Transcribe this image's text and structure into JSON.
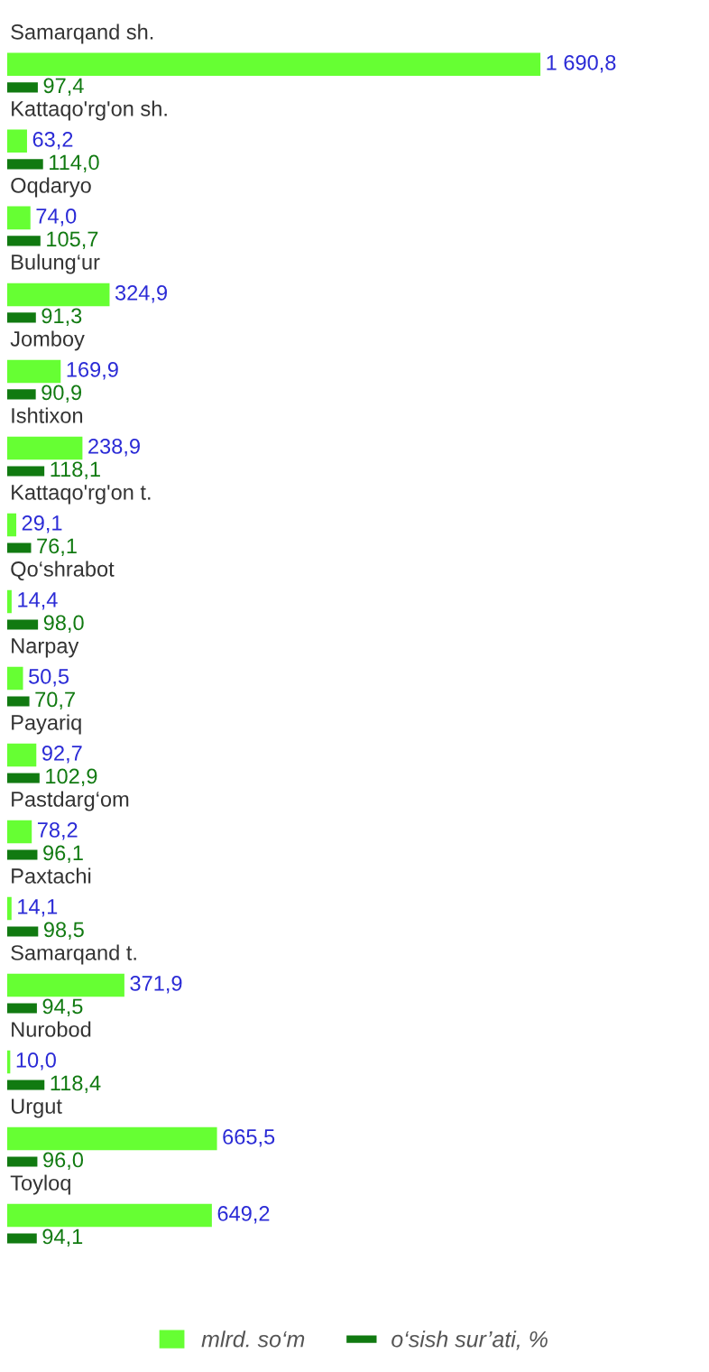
{
  "chart_data": {
    "type": "bar",
    "orientation": "horizontal",
    "legend": "bottom",
    "categories": [
      "Samarqand sh.",
      "Kattaqo'rg'on sh.",
      "Oqdaryo",
      "Bulung‘ur",
      "Jomboy",
      "Ishtixon",
      "Kattaqo'rg'on t.",
      "Qo‘shrabot",
      "Narpay",
      "Payariq",
      "Pastdarg‘om",
      "Paxtachi",
      "Samarqand t.",
      "Nurobod",
      "Urgut",
      "Toyloq"
    ],
    "series": [
      {
        "name": "mlrd. so‘m",
        "color": "#66ff33",
        "values": [
          1690.8,
          63.2,
          74.0,
          324.9,
          169.9,
          238.9,
          29.1,
          14.4,
          50.5,
          92.7,
          78.2,
          14.1,
          371.9,
          10.0,
          665.5,
          649.2
        ],
        "value_labels": [
          "1 690,8",
          "63,2",
          "74,0",
          "324,9",
          "169,9",
          "238,9",
          "29,1",
          "14,4",
          "50,5",
          "92,7",
          "78,2",
          "14,1",
          "371,9",
          "10,0",
          "665,5",
          "649,2"
        ]
      },
      {
        "name": "o‘sish sur’ati, %",
        "color": "#117a11",
        "values": [
          97.4,
          114.0,
          105.7,
          91.3,
          90.9,
          118.1,
          76.1,
          98.0,
          70.7,
          102.9,
          96.1,
          98.5,
          94.5,
          118.4,
          96.0,
          94.1
        ],
        "value_labels": [
          "97,4",
          "114,0",
          "105,7",
          "91,3",
          "90,9",
          "118,1",
          "76,1",
          "98,0",
          "70,7",
          "102,9",
          "96,1",
          "98,5",
          "94,5",
          "118,4",
          "96,0",
          "94,1"
        ]
      }
    ]
  }
}
